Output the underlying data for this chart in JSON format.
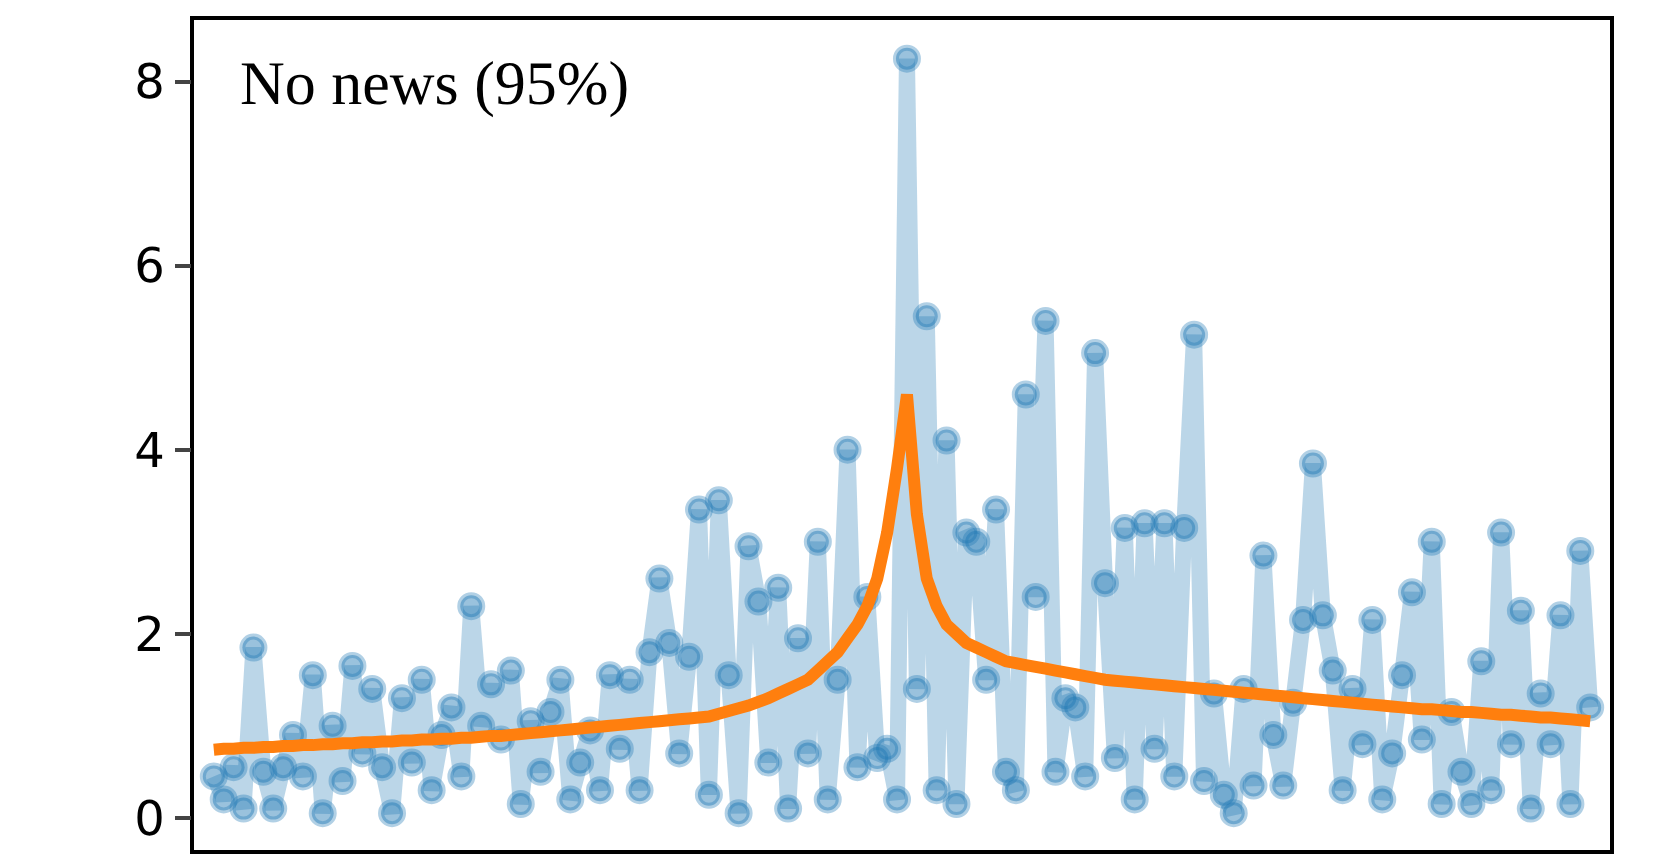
{
  "chart_data": {
    "type": "line",
    "categories": [
      null,
      null,
      null,
      null,
      null,
      null,
      null,
      null,
      null,
      null,
      null,
      null,
      null,
      null,
      null,
      null,
      null,
      null,
      null,
      null,
      null,
      null,
      null,
      null,
      null,
      null,
      null,
      null,
      null,
      null,
      null,
      null,
      null,
      null,
      null,
      null,
      null,
      null,
      null,
      null,
      null,
      null,
      null,
      null,
      null,
      null,
      null,
      null,
      null,
      null,
      null,
      null,
      null,
      null,
      null,
      null,
      null,
      null,
      null,
      null,
      null,
      null,
      null,
      null,
      null,
      null,
      null,
      null,
      null,
      null,
      null,
      null,
      null,
      null,
      null,
      null,
      null,
      null,
      null,
      null,
      null,
      null,
      null,
      null,
      null,
      null,
      null,
      null,
      null,
      null,
      null,
      null,
      null,
      null,
      null,
      null,
      null,
      null,
      null,
      null,
      null,
      null,
      null,
      null,
      null,
      null,
      null,
      null,
      null,
      null,
      null,
      null,
      null,
      null,
      null,
      null,
      null,
      null,
      null,
      null,
      null,
      null,
      null,
      null,
      null,
      null,
      null,
      null,
      null,
      null,
      null,
      null,
      null,
      null,
      null,
      null,
      null,
      null,
      null,
      null
    ],
    "series": [
      {
        "color": "#1f77b4",
        "marker": "circle",
        "values": [
          0.45,
          0.2,
          0.55,
          0.1,
          1.85,
          0.5,
          0.1,
          0.55,
          0.9,
          0.45,
          1.55,
          0.05,
          1.0,
          0.4,
          1.65,
          0.7,
          1.4,
          0.55,
          0.05,
          1.3,
          0.6,
          1.5,
          0.3,
          0.9,
          1.2,
          0.45,
          2.3,
          1.0,
          1.45,
          0.85,
          1.6,
          0.15,
          1.05,
          0.5,
          1.15,
          1.5,
          0.2,
          0.6,
          0.95,
          0.3,
          1.55,
          0.75,
          1.5,
          0.3,
          1.8,
          2.6,
          1.9,
          0.7,
          1.75,
          3.35,
          0.25,
          3.45,
          1.55,
          0.05,
          2.95,
          2.35,
          0.6,
          2.5,
          0.1,
          1.95,
          0.7,
          3.0,
          0.2,
          1.5,
          4.0,
          0.55,
          2.4,
          0.65,
          0.75,
          0.2,
          8.25,
          1.4,
          5.45,
          0.3,
          4.1,
          0.15,
          3.1,
          3.0,
          1.5,
          3.35,
          0.5,
          0.3,
          4.6,
          2.4,
          5.4,
          0.5,
          1.3,
          1.2,
          0.45,
          5.05,
          2.55,
          0.65,
          3.15,
          0.2,
          3.2,
          0.75,
          3.2,
          0.45,
          3.15,
          5.25,
          0.4,
          1.35,
          0.25,
          0.05,
          1.4,
          0.35,
          2.85,
          0.9,
          0.35,
          1.25,
          2.15,
          3.85,
          2.2,
          1.6,
          0.3,
          1.4,
          0.8,
          2.15,
          0.2,
          0.7,
          1.55,
          2.45,
          0.85,
          3.0,
          0.15,
          1.15,
          0.5,
          0.15,
          1.7,
          0.3,
          3.1,
          0.8,
          2.25,
          0.1,
          1.35,
          0.8,
          2.2,
          0.15,
          2.9,
          1.2
        ]
      },
      {
        "color": "#ff7f0e",
        "marker": "none",
        "values": [
          0.74,
          0.75,
          0.75,
          0.76,
          0.76,
          0.77,
          0.77,
          0.78,
          0.78,
          0.79,
          0.79,
          0.8,
          0.8,
          0.81,
          0.81,
          0.82,
          0.82,
          0.83,
          0.83,
          0.84,
          0.84,
          0.85,
          0.85,
          0.86,
          0.86,
          0.87,
          0.87,
          0.88,
          0.89,
          0.89,
          0.9,
          0.91,
          0.92,
          0.93,
          0.94,
          0.95,
          0.96,
          0.97,
          0.98,
          0.99,
          1.0,
          1.01,
          1.02,
          1.03,
          1.04,
          1.05,
          1.06,
          1.07,
          1.08,
          1.09,
          1.1,
          1.13,
          1.16,
          1.19,
          1.22,
          1.26,
          1.3,
          1.35,
          1.4,
          1.45,
          1.5,
          1.6,
          1.7,
          1.8,
          1.95,
          2.1,
          2.3,
          2.6,
          3.1,
          3.8,
          4.6,
          3.3,
          2.6,
          2.3,
          2.1,
          2.0,
          1.9,
          1.85,
          1.8,
          1.75,
          1.7,
          1.68,
          1.66,
          1.64,
          1.62,
          1.6,
          1.58,
          1.56,
          1.54,
          1.52,
          1.5,
          1.49,
          1.48,
          1.47,
          1.46,
          1.45,
          1.44,
          1.43,
          1.42,
          1.41,
          1.4,
          1.39,
          1.38,
          1.37,
          1.36,
          1.35,
          1.34,
          1.33,
          1.32,
          1.31,
          1.3,
          1.29,
          1.28,
          1.27,
          1.26,
          1.25,
          1.24,
          1.23,
          1.22,
          1.21,
          1.2,
          1.19,
          1.18,
          1.18,
          1.17,
          1.16,
          1.15,
          1.15,
          1.14,
          1.13,
          1.12,
          1.12,
          1.11,
          1.1,
          1.09,
          1.09,
          1.08,
          1.07,
          1.06,
          1.05
        ]
      }
    ],
    "ylim": [
      -0.35,
      8.67
    ],
    "yticks": [
      0,
      2,
      4,
      6,
      8
    ],
    "tick_labels": "y",
    "annotations": [
      "No news (95%)"
    ]
  }
}
